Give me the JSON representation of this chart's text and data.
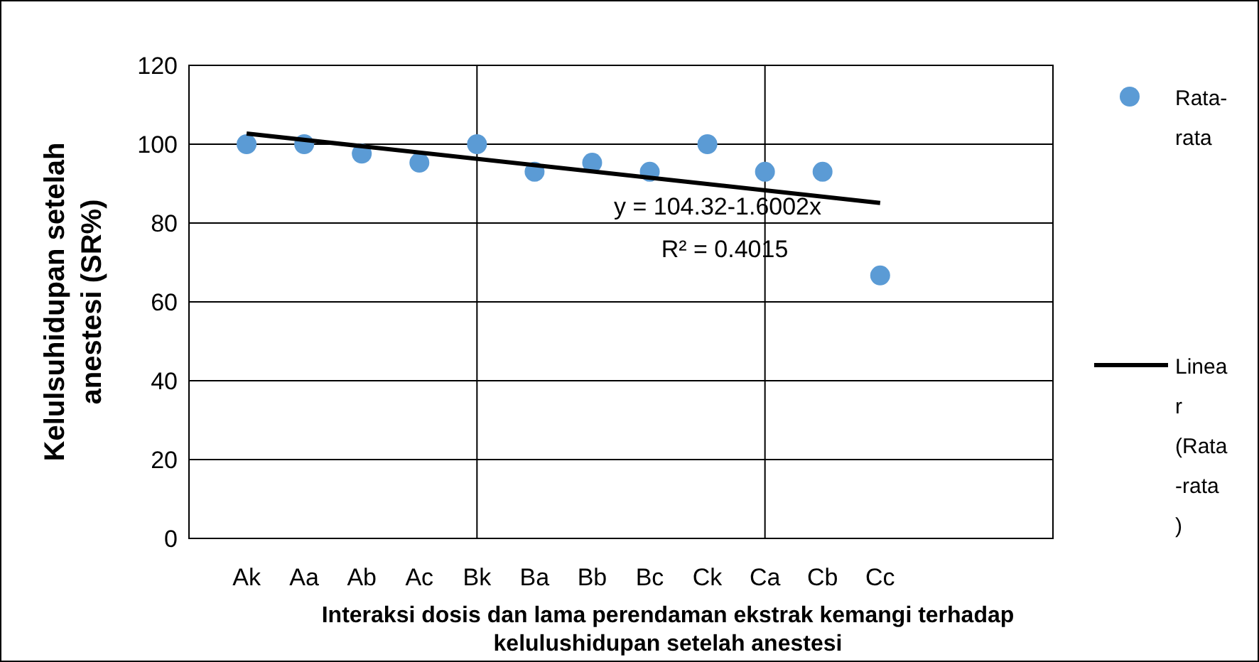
{
  "chart_data": {
    "type": "scatter",
    "xlabel": "Interaksi dosis dan lama perendaman ekstrak kemangi terhadap\nkelulushidupan setelah anestesi",
    "ylabel": "Kelulsuhidupan setelah\nanestesi (SR%)",
    "categories": [
      "Ak",
      "Aa",
      "Ab",
      "Ac",
      "Bk",
      "Ba",
      "Bb",
      "Bc",
      "Ck",
      "Ca",
      "Cb",
      "Cc"
    ],
    "series": [
      {
        "name": "Rata-rata",
        "color": "#5b9bd5",
        "marker": "circle",
        "values": [
          100,
          100,
          97.6,
          95.3,
          100,
          93,
          95.3,
          93,
          100,
          93,
          93,
          66.7
        ]
      },
      {
        "name": "Linear (Rata-rata)",
        "type": "line",
        "color": "#000000",
        "marker": "none",
        "x": [
          "Ak",
          "Cc"
        ],
        "values": [
          102.7,
          85.1
        ]
      }
    ],
    "ylim": [
      0,
      120
    ],
    "yticks": [
      0,
      20,
      40,
      60,
      80,
      100,
      120
    ],
    "grid": "y",
    "ref_lines": [
      {
        "axis": "x",
        "value": "Bk",
        "color": "#000000"
      },
      {
        "axis": "x",
        "value": "Ca",
        "color": "#000000"
      }
    ],
    "annotations": [
      "y = 104.32-1.6002x",
      "R² = 0.4015"
    ],
    "legend": "right",
    "line_style": "solid"
  }
}
